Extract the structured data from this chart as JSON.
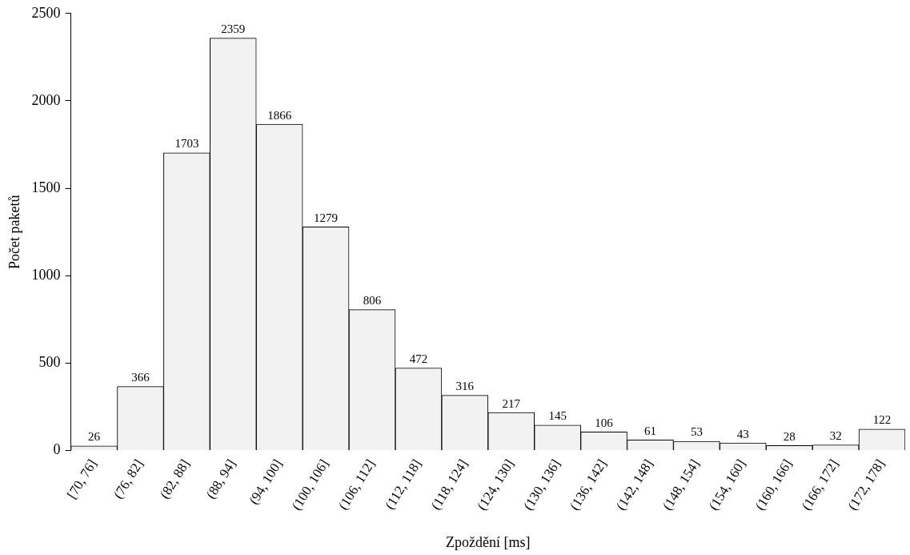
{
  "chart_data": {
    "type": "bar",
    "xlabel": "Zpoždění [ms]",
    "ylabel": "Počet paketů",
    "categories": [
      "[70, 76]",
      "(76, 82]",
      "(82, 88]",
      "(88, 94]",
      "(94, 100]",
      "(100, 106]",
      "(106, 112]",
      "(112, 118]",
      "(118, 124]",
      "(124, 130]",
      "(130, 136]",
      "(136, 142]",
      "(142, 148]",
      "(148, 154]",
      "(154, 160]",
      "(160, 166]",
      "(166, 172]",
      "(172, 178]"
    ],
    "values": [
      26,
      366,
      1703,
      2359,
      1866,
      1279,
      806,
      472,
      316,
      217,
      145,
      106,
      61,
      53,
      43,
      28,
      32,
      122
    ],
    "color": "#f2f2f2",
    "ylim": [
      0,
      2500
    ],
    "yticks": [
      0,
      500,
      1000,
      1500,
      2000,
      2500
    ],
    "grid": false,
    "legend": false,
    "data_labels": true
  }
}
